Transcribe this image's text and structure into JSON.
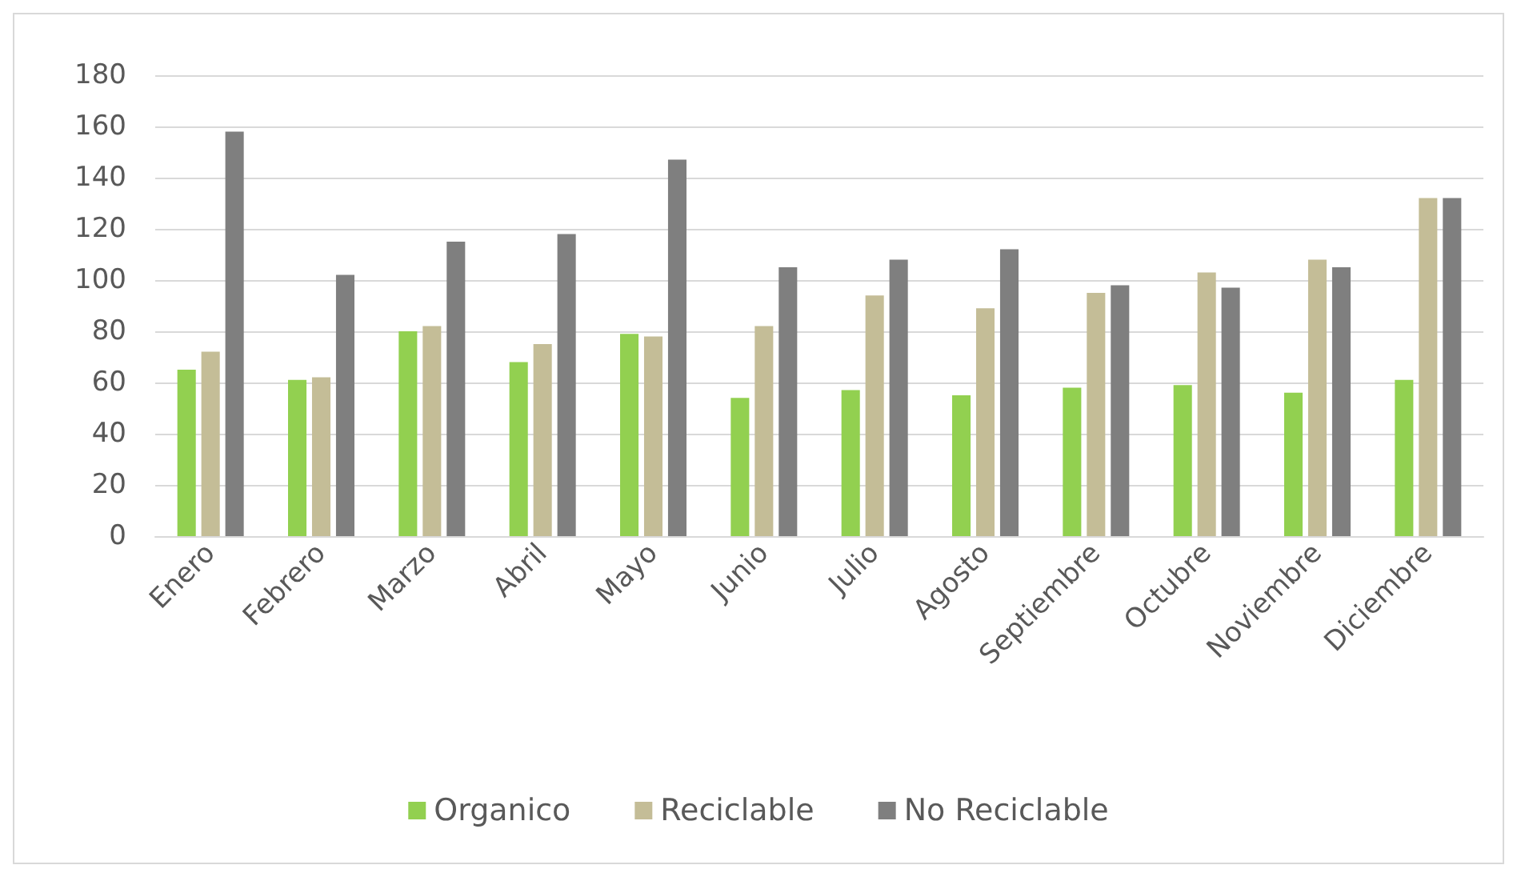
{
  "chart_data": {
    "type": "bar",
    "categories": [
      "Enero",
      "Febrero",
      "Marzo",
      "Abril",
      "Mayo",
      "Junio",
      "Julio",
      "Agosto",
      "Septiembre",
      "Octubre",
      "Noviembre",
      "Diciembre"
    ],
    "series": [
      {
        "name": "Organico",
        "color": "#92d050",
        "values": [
          65,
          61,
          80,
          68,
          79,
          54,
          57,
          55,
          58,
          59,
          56,
          61
        ]
      },
      {
        "name": "Reciclable",
        "color": "#c4bd97",
        "values": [
          72,
          62,
          82,
          75,
          78,
          82,
          94,
          89,
          95,
          103,
          108,
          132
        ]
      },
      {
        "name": "No Reciclable",
        "color": "#7f7f7f",
        "values": [
          158,
          102,
          115,
          118,
          147,
          105,
          108,
          112,
          98,
          97,
          105,
          132
        ]
      }
    ],
    "ylim": [
      0,
      180
    ],
    "yticks": [
      0,
      20,
      40,
      60,
      80,
      100,
      120,
      140,
      160,
      180
    ],
    "grid": "y",
    "legend": "bottom"
  }
}
